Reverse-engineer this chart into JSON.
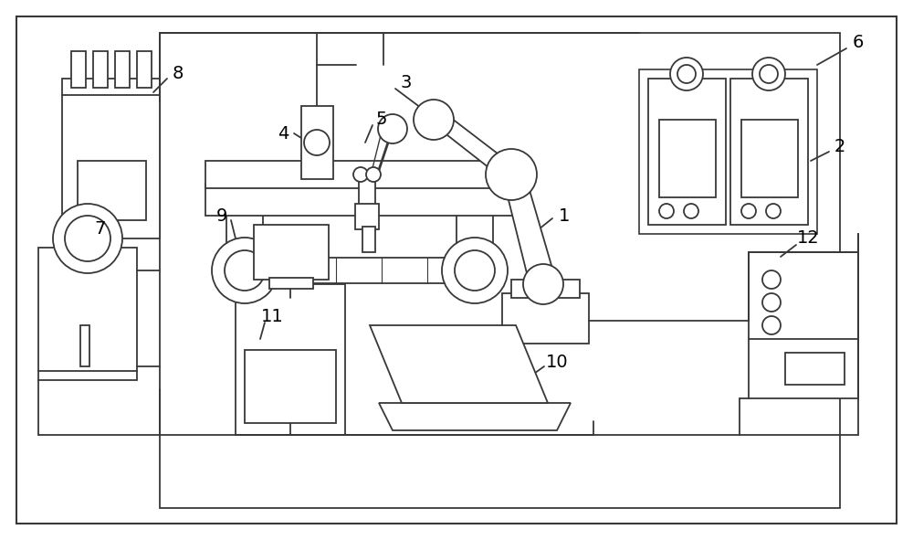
{
  "bg": "#ffffff",
  "lc": "#383838",
  "lw": 1.3,
  "fw": 10.0,
  "fh": 5.91,
  "dpi": 100
}
